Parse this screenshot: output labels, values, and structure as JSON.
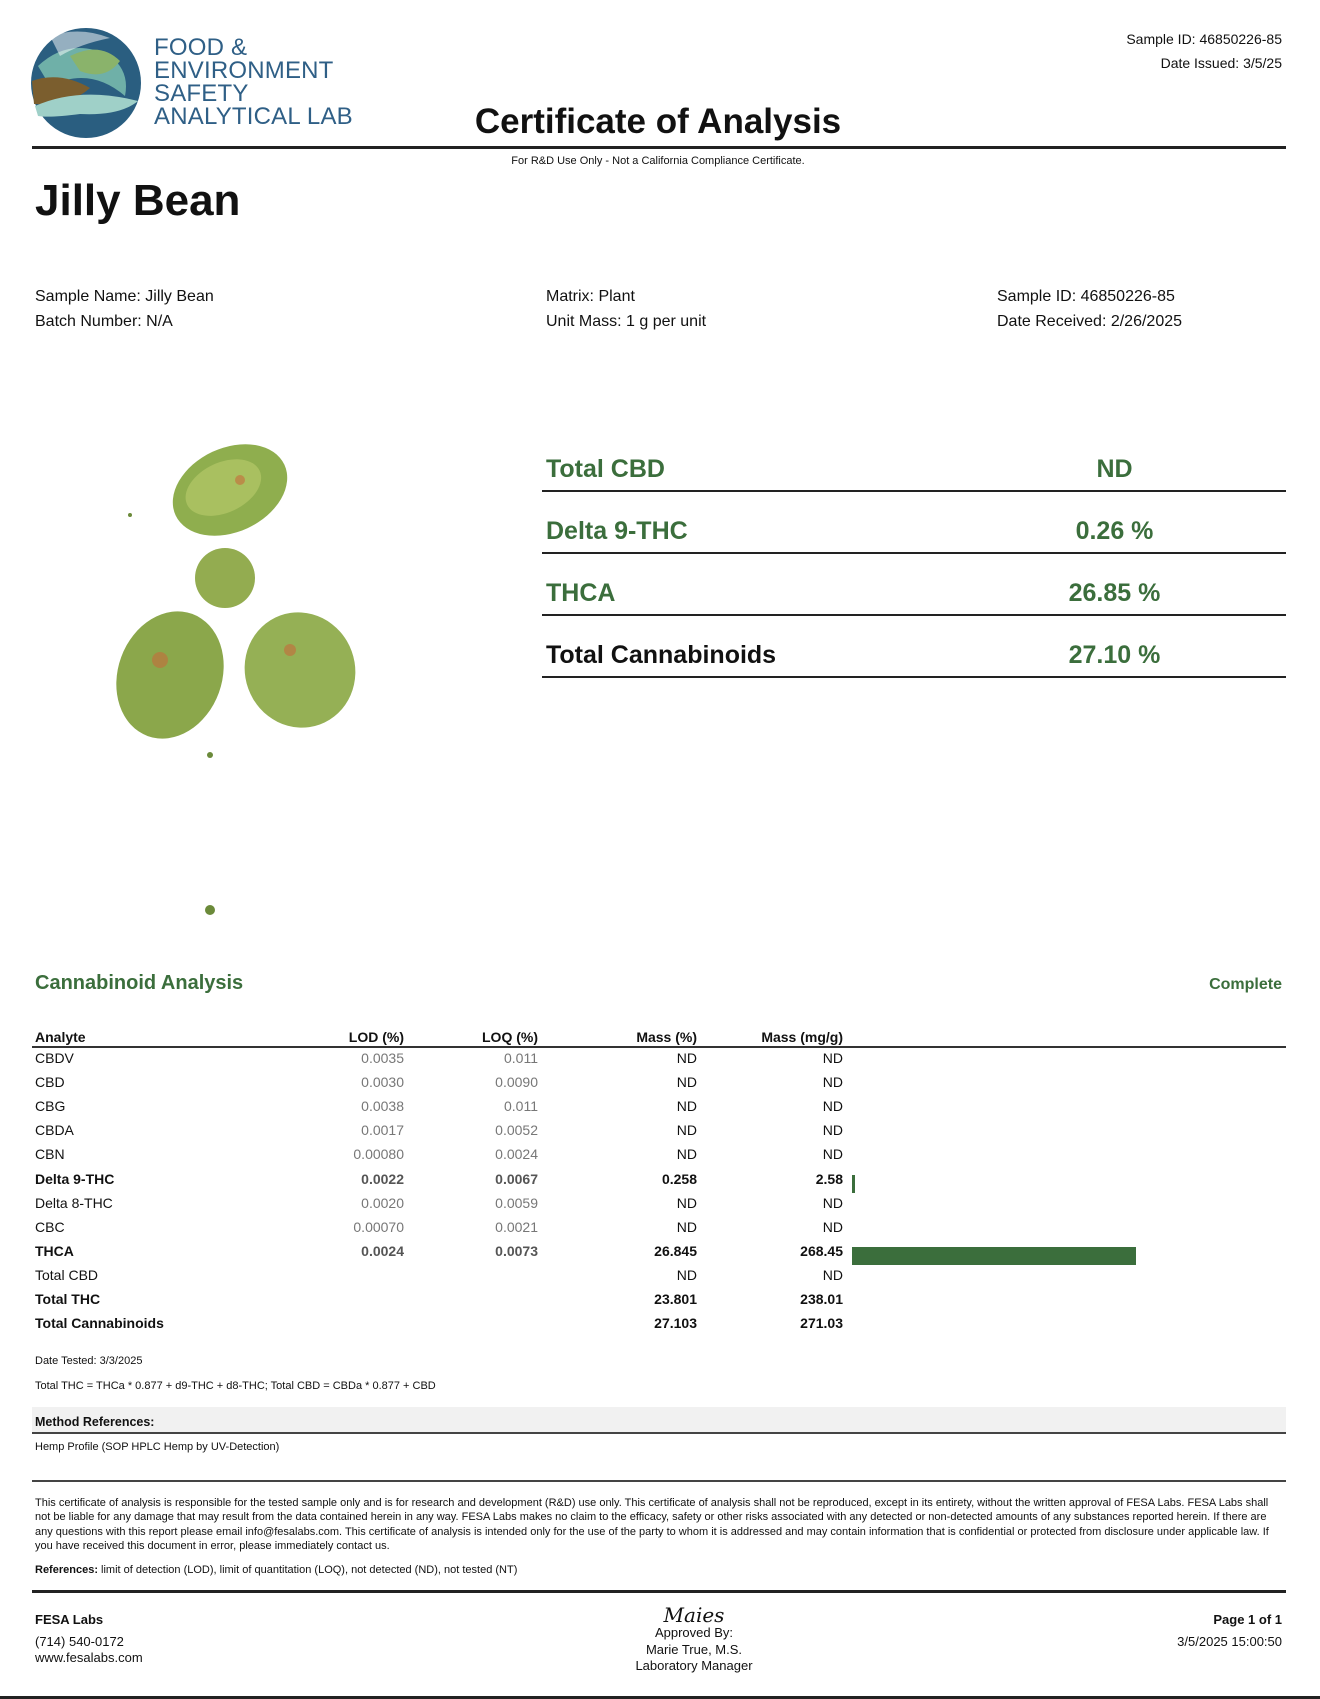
{
  "header": {
    "logo_text": [
      "FOOD &",
      "ENVIRONMENT",
      "SAFETY",
      "ANALYTICAL LAB"
    ],
    "sample_id": "Sample ID: 46850226-85",
    "date_issued": "Date Issued: 3/5/25",
    "title": "Certificate of Analysis",
    "note": "For R&D Use Only - Not a California Compliance Certificate."
  },
  "product_name": "Jilly Bean",
  "info": {
    "sample_name": "Sample Name: Jilly Bean",
    "batch_number": "Batch Number: N/A",
    "matrix": "Matrix: Plant",
    "unit_mass": "Unit Mass: 1 g per unit",
    "sample_id": "Sample ID: 46850226-85",
    "date_received": "Date Received: 2/26/2025"
  },
  "summary": [
    {
      "label": "Total CBD",
      "value": "ND"
    },
    {
      "label": "Delta 9-THC",
      "value": "0.26 %"
    },
    {
      "label": "THCA",
      "value": "26.85 %"
    },
    {
      "label": "Total Cannabinoids",
      "value": "27.10 %"
    }
  ],
  "analysis": {
    "title": "Cannabinoid Analysis",
    "status": "Complete",
    "columns": [
      "Analyte",
      "LOD (%)",
      "LOQ (%)",
      "Mass (%)",
      "Mass (mg/g)"
    ],
    "rows": [
      {
        "analyte": "CBDV",
        "lod": "0.0035",
        "loq": "0.011",
        "mass_pct": "ND",
        "mass_mgg": "ND",
        "bold": false,
        "bar": 0
      },
      {
        "analyte": "CBD",
        "lod": "0.0030",
        "loq": "0.0090",
        "mass_pct": "ND",
        "mass_mgg": "ND",
        "bold": false,
        "bar": 0
      },
      {
        "analyte": "CBG",
        "lod": "0.0038",
        "loq": "0.011",
        "mass_pct": "ND",
        "mass_mgg": "ND",
        "bold": false,
        "bar": 0
      },
      {
        "analyte": "CBDA",
        "lod": "0.0017",
        "loq": "0.0052",
        "mass_pct": "ND",
        "mass_mgg": "ND",
        "bold": false,
        "bar": 0
      },
      {
        "analyte": "CBN",
        "lod": "0.00080",
        "loq": "0.0024",
        "mass_pct": "ND",
        "mass_mgg": "ND",
        "bold": false,
        "bar": 0
      },
      {
        "analyte": "Delta 9-THC",
        "lod": "0.0022",
        "loq": "0.0067",
        "mass_pct": "0.258",
        "mass_mgg": "2.58",
        "bold": true,
        "bar": 2.58
      },
      {
        "analyte": "Delta 8-THC",
        "lod": "0.0020",
        "loq": "0.0059",
        "mass_pct": "ND",
        "mass_mgg": "ND",
        "bold": false,
        "bar": 0
      },
      {
        "analyte": "CBC",
        "lod": "0.00070",
        "loq": "0.0021",
        "mass_pct": "ND",
        "mass_mgg": "ND",
        "bold": false,
        "bar": 0
      },
      {
        "analyte": "THCA",
        "lod": "0.0024",
        "loq": "0.0073",
        "mass_pct": "26.845",
        "mass_mgg": "268.45",
        "bold": true,
        "bar": 268.45
      },
      {
        "analyte": "Total CBD",
        "lod": "",
        "loq": "",
        "mass_pct": "ND",
        "mass_mgg": "ND",
        "bold": false,
        "bar": 0
      },
      {
        "analyte": "Total THC",
        "lod": "",
        "loq": "",
        "mass_pct": "23.801",
        "mass_mgg": "238.01",
        "bold": true,
        "bar": 0
      },
      {
        "analyte": "Total Cannabinoids",
        "lod": "",
        "loq": "",
        "mass_pct": "27.103",
        "mass_mgg": "271.03",
        "bold": true,
        "bar": 0
      }
    ],
    "bar_color": "#3b6e3c",
    "date_tested": "Date Tested: 3/3/2025",
    "formula": "Total THC = THCa * 0.877 + d9-THC + d8-THC; Total CBD = CBDa * 0.877 + CBD"
  },
  "method": {
    "title": "Method References:",
    "text": "Hemp Profile (SOP HPLC Hemp by UV-Detection)"
  },
  "disclaimer": "This certificate of analysis is responsible for the tested sample only and is for research and development (R&D) use only. This certificate of analysis shall not be reproduced, except in its entirety, without the written approval of FESA Labs. FESA Labs shall not be liable for any damage that may result from the data contained herein in any way. FESA Labs makes no claim to the efficacy, safety or other risks associated with any detected or non-detected amounts of any substances reported herein. If there are any questions with this report please email info@fesalabs.com. This certificate of analysis is intended only for the use of the party to whom it is addressed and may contain information that is confidential or protected from disclosure under applicable law. If you have received this document in error, please immediately contact us.",
  "references": {
    "label": "References:",
    "text": " limit of detection (LOD), limit of quantitation (LOQ), not detected (ND), not tested (NT)"
  },
  "footer": {
    "company": "FESA Labs",
    "phone": "(714) 540-0172",
    "website": "www.fesalabs.com",
    "signature": "Maies",
    "approved_by": "Approved By:",
    "approver": "Marie True, M.S.",
    "approver_title": "Laboratory Manager",
    "page": "Page 1 of 1",
    "timestamp": "3/5/2025 15:00:50"
  }
}
